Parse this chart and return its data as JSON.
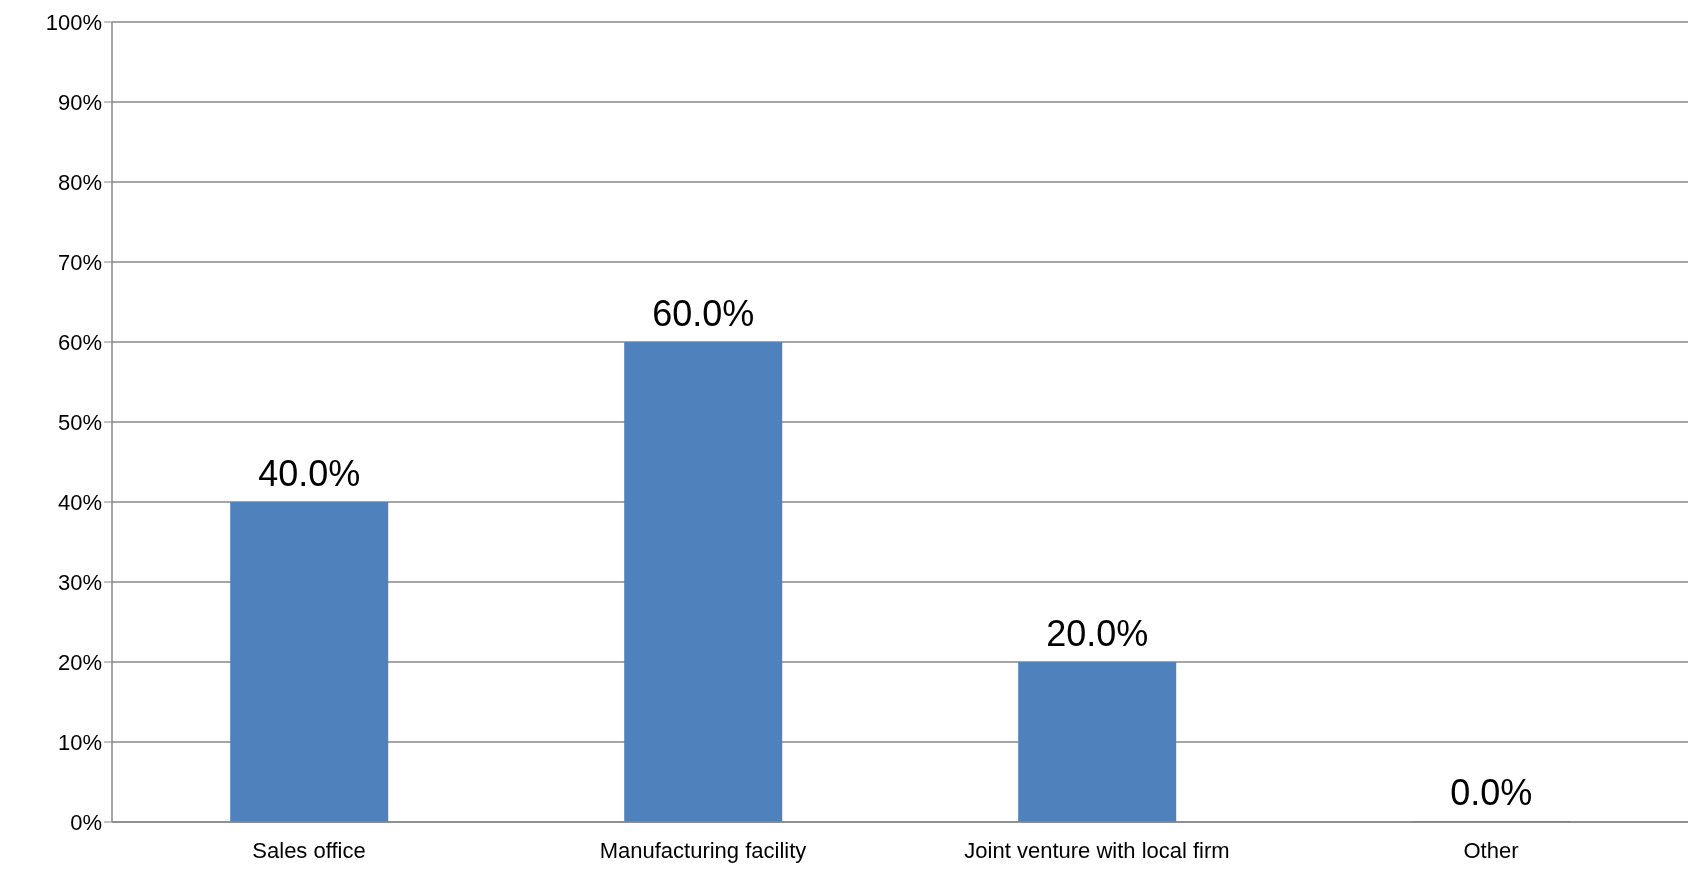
{
  "chart_data": {
    "type": "bar",
    "categories": [
      "Sales office",
      "Manufacturing facility",
      "Joint venture with local firm",
      "Other"
    ],
    "values": [
      40,
      60,
      20,
      0
    ],
    "value_labels": [
      "40.0%",
      "60.0%",
      "20.0%",
      "0.0%"
    ],
    "color": "#4f81bd",
    "ylim": [
      0,
      100
    ],
    "yticks": [
      {
        "value": 0,
        "label": "0%"
      },
      {
        "value": 10,
        "label": "10%"
      },
      {
        "value": 20,
        "label": "20%"
      },
      {
        "value": 30,
        "label": "30%"
      },
      {
        "value": 40,
        "label": "40%"
      },
      {
        "value": 50,
        "label": "50%"
      },
      {
        "value": 60,
        "label": "60%"
      },
      {
        "value": 70,
        "label": "70%"
      },
      {
        "value": 80,
        "label": "80%"
      },
      {
        "value": 90,
        "label": "90%"
      },
      {
        "value": 100,
        "label": "100%"
      }
    ],
    "grid": "y"
  }
}
